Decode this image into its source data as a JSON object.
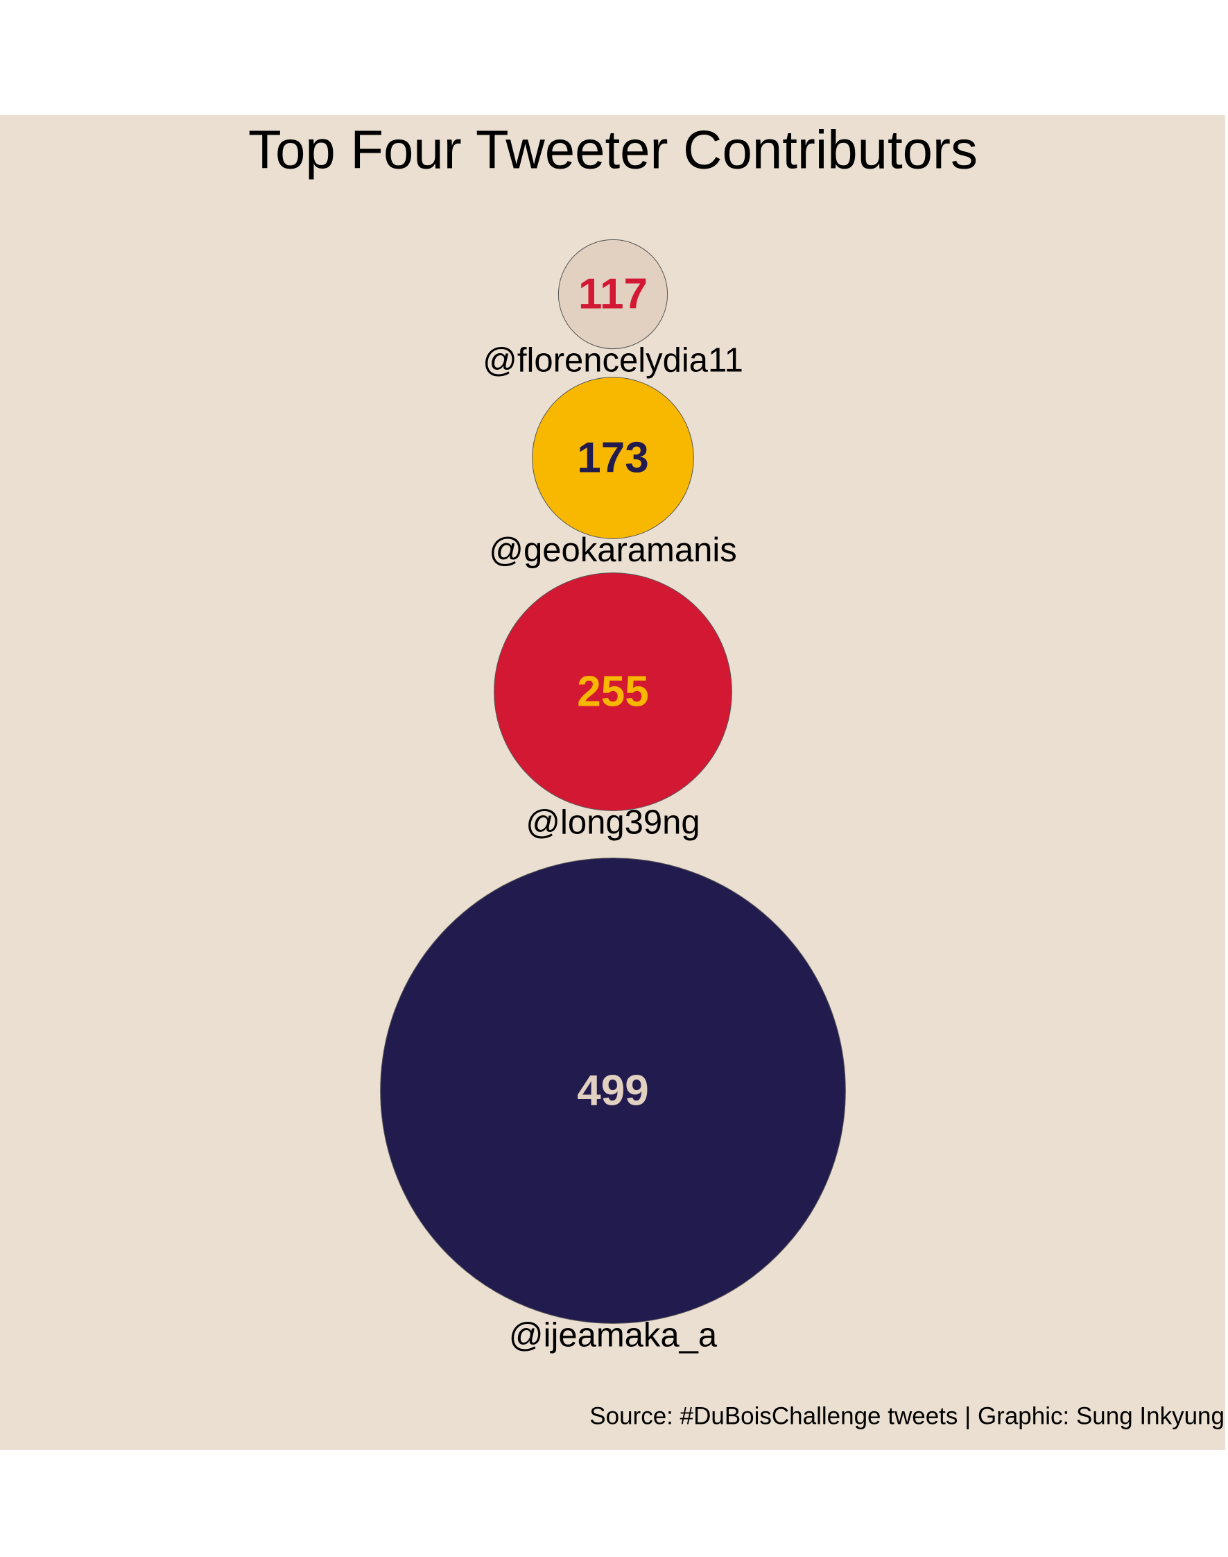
{
  "chart_data": {
    "type": "bubble",
    "title": "Top Four Tweeter Contributors",
    "categories": [
      "@florencelydia11",
      "@geokaramanis",
      "@long39ng",
      "@ijeamaka_a"
    ],
    "values": [
      117,
      173,
      255,
      499
    ],
    "colors": [
      "#e2d0c0",
      "#f9b800",
      "#d31834",
      "#221b4e"
    ],
    "label_colors": [
      "#d31834",
      "#221b4e",
      "#f9b800",
      "#e2d0c0"
    ],
    "caption": "Source: #DuBoisChallenge tweets | Graphic: Sung Inkyung"
  }
}
